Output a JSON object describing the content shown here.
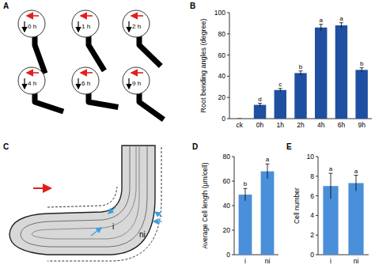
{
  "chart_data": [
    {
      "type": "bar",
      "title": "B",
      "y_label": "Root bending angles (degree)",
      "categories": [
        "ck",
        "0h",
        "1h",
        "2h",
        "4h",
        "6h",
        "9h"
      ],
      "values": [
        0,
        13,
        27,
        43,
        86,
        88,
        46
      ],
      "errors": [
        0,
        1.5,
        1.5,
        2,
        3,
        2.5,
        2
      ],
      "annotations": [
        null,
        "d",
        "c",
        "b",
        "a",
        "a",
        "b"
      ],
      "color": "#1f4fa0",
      "ylim": [
        0,
        100
      ],
      "yticks": [
        0,
        20,
        40,
        60,
        80,
        100
      ]
    },
    {
      "type": "bar",
      "title": "D",
      "y_label": "Average Cell length (μm/cell)",
      "categories": [
        "i",
        "ni"
      ],
      "values": [
        49,
        68
      ],
      "errors": [
        5,
        6
      ],
      "annotations": [
        "b",
        "a"
      ],
      "color": "#4a8fd9",
      "ylim": [
        0,
        80
      ],
      "yticks": [
        0,
        20,
        40,
        60,
        80
      ]
    },
    {
      "type": "bar",
      "title": "E",
      "y_label": "Cell number",
      "categories": [
        "i",
        "ni"
      ],
      "values": [
        7,
        7.3
      ],
      "errors": [
        1.3,
        0.8
      ],
      "annotations": [
        "a",
        "a"
      ],
      "color": "#4a8fd9",
      "ylim": [
        0,
        10
      ],
      "yticks": [
        0,
        2,
        4,
        6,
        8,
        10
      ]
    }
  ],
  "diagrams": {
    "A": {
      "title": "A",
      "labels": [
        "0 h",
        "1 h",
        "2 h",
        "4 h",
        "6 h",
        "9 h"
      ]
    },
    "C": {
      "title": "C",
      "labels": [
        "i",
        "ni"
      ]
    }
  }
}
